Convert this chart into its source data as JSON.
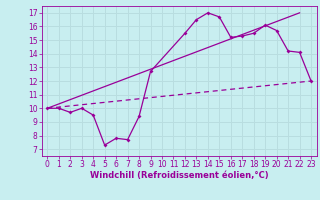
{
  "background_color": "#c8eef0",
  "grid_color": "#b8dde0",
  "line_color": "#990099",
  "xlabel": "Windchill (Refroidissement éolien,°C)",
  "xlim": [
    -0.5,
    23.5
  ],
  "ylim": [
    6.5,
    17.5
  ],
  "xticks": [
    0,
    1,
    2,
    3,
    4,
    5,
    6,
    7,
    8,
    9,
    10,
    11,
    12,
    13,
    14,
    15,
    16,
    17,
    18,
    19,
    20,
    21,
    22,
    23
  ],
  "yticks": [
    7,
    8,
    9,
    10,
    11,
    12,
    13,
    14,
    15,
    16,
    17
  ],
  "data_x": [
    0,
    1,
    2,
    3,
    4,
    5,
    6,
    7,
    8,
    9,
    12,
    13,
    14,
    15,
    16,
    17,
    18,
    19,
    20,
    21,
    22,
    23
  ],
  "data_y": [
    10.0,
    10.0,
    9.7,
    10.0,
    9.5,
    7.3,
    7.8,
    7.7,
    9.4,
    12.7,
    15.5,
    16.5,
    17.0,
    16.7,
    15.2,
    15.3,
    15.5,
    16.1,
    15.7,
    14.2,
    14.1,
    12.0
  ],
  "line1_x": [
    0,
    22
  ],
  "line1_y": [
    10.0,
    17.0
  ],
  "line2_x": [
    0,
    23
  ],
  "line2_y": [
    10.0,
    12.0
  ],
  "tick_fontsize": 5.5,
  "label_fontsize": 6.0
}
